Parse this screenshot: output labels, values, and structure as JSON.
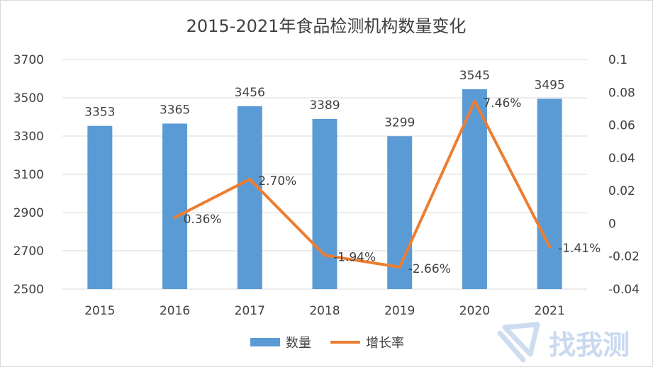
{
  "chart_data": {
    "type": "bar",
    "title": "2015-2021年食品检测机构数量变化",
    "categories": [
      "2015",
      "2016",
      "2017",
      "2018",
      "2019",
      "2020",
      "2021"
    ],
    "series": [
      {
        "name": "数量",
        "type": "bar",
        "axis": "left",
        "values": [
          3353,
          3365,
          3456,
          3389,
          3299,
          3545,
          3495
        ],
        "labels": [
          "3353",
          "3365",
          "3456",
          "3389",
          "3299",
          "3545",
          "3495"
        ],
        "color": "#5b9bd5"
      },
      {
        "name": "增长率",
        "type": "line",
        "axis": "right",
        "values": [
          null,
          0.0036,
          0.027,
          -0.0194,
          -0.0266,
          0.0746,
          -0.0141
        ],
        "labels": [
          "",
          "0.36%",
          "2.70%",
          "-1.94%",
          "-2.66%",
          "7.46%",
          "-1.41%"
        ],
        "color": "#ed7d31"
      }
    ],
    "y_left": {
      "ylim": [
        2500,
        3700
      ],
      "ticks": [
        2500,
        2700,
        2900,
        3100,
        3300,
        3500,
        3700
      ],
      "tick_labels": [
        "2500",
        "2700",
        "2900",
        "3100",
        "3300",
        "3500",
        "3700"
      ]
    },
    "y_right": {
      "ylim": [
        -0.04,
        0.1
      ],
      "ticks": [
        -0.04,
        -0.02,
        0,
        0.02,
        0.04,
        0.06,
        0.08,
        0.1
      ],
      "tick_labels": [
        "-0.04",
        "-0.02",
        "0",
        "0.02",
        "0.04",
        "0.06",
        "0.08",
        "0.1"
      ]
    },
    "grid": true,
    "legend_position": "bottom"
  },
  "watermark": {
    "text": "找我测",
    "icon": "lightning-shield-logo",
    "color": "#c9d9ef"
  }
}
